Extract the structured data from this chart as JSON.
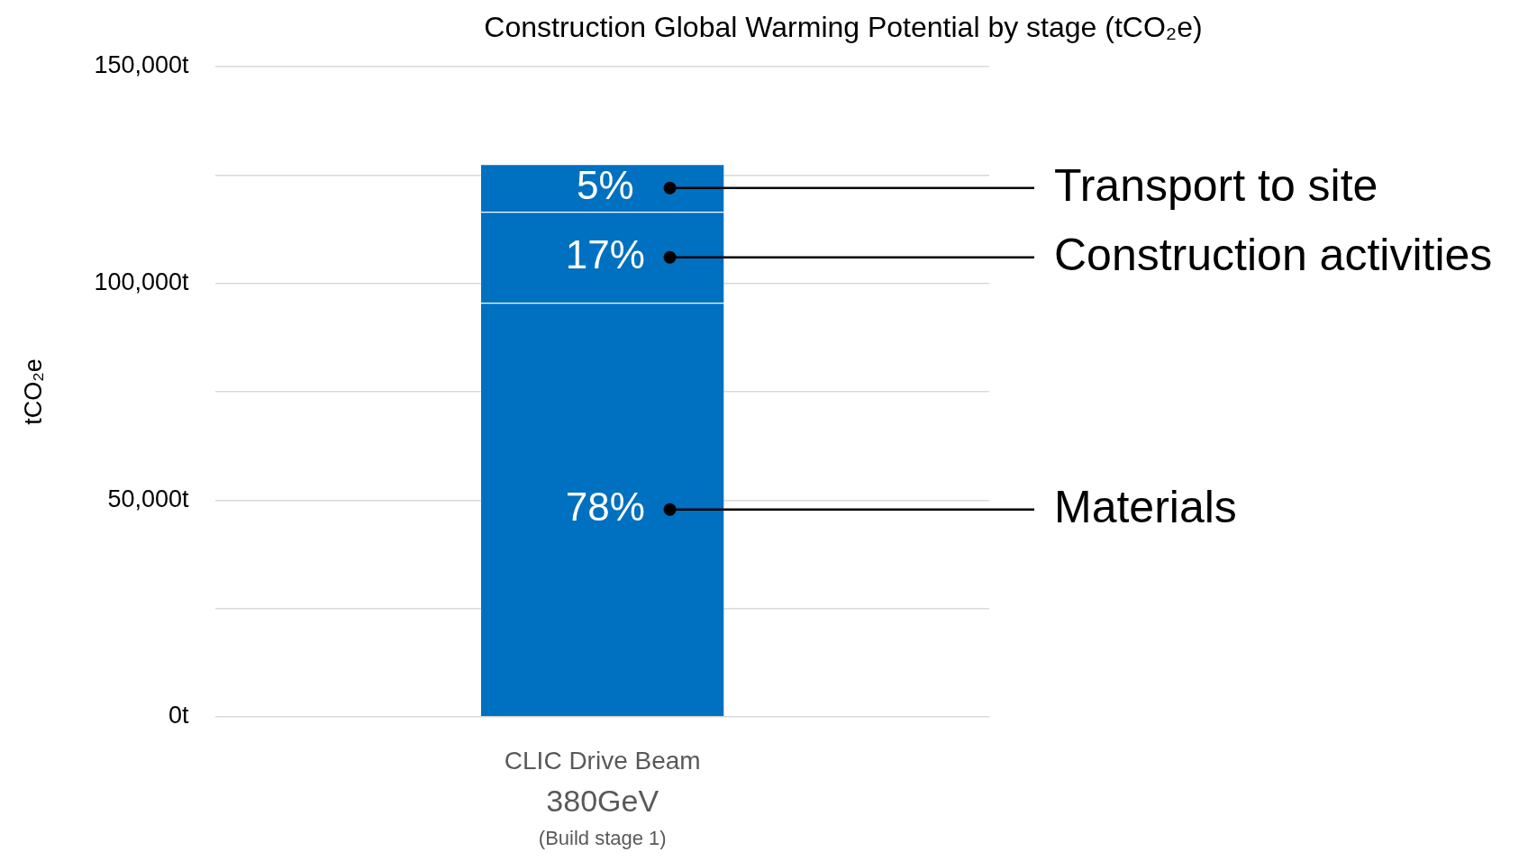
{
  "chart_data": {
    "type": "bar",
    "title": "Construction Global Warming Potential by stage (tCO₂e)",
    "ylabel": "tCO₂e",
    "categories": [
      "CLIC Drive Beam\n380GeV\n(Build stage 1)"
    ],
    "stacked": true,
    "ylim": [
      0,
      150000
    ],
    "yticks": [
      {
        "value": 0,
        "label": "0t"
      },
      {
        "value": 25000,
        "label": null
      },
      {
        "value": 50000,
        "label": "50,000t"
      },
      {
        "value": 75000,
        "label": null
      },
      {
        "value": 100000,
        "label": "100,000t"
      },
      {
        "value": 125000,
        "label": null
      },
      {
        "value": 150000,
        "label": "150,000t"
      }
    ],
    "grid": "y",
    "series": [
      {
        "name": "Materials",
        "color": "#0070c0",
        "values": [
          95500
        ]
      },
      {
        "name": "Construction activities",
        "color": "#0070c0",
        "values": [
          21000
        ]
      },
      {
        "name": "Transport to site",
        "color": "#0070c0",
        "values": [
          11000
        ]
      }
    ],
    "annotations": [
      "78%",
      "17%",
      "5%"
    ]
  }
}
